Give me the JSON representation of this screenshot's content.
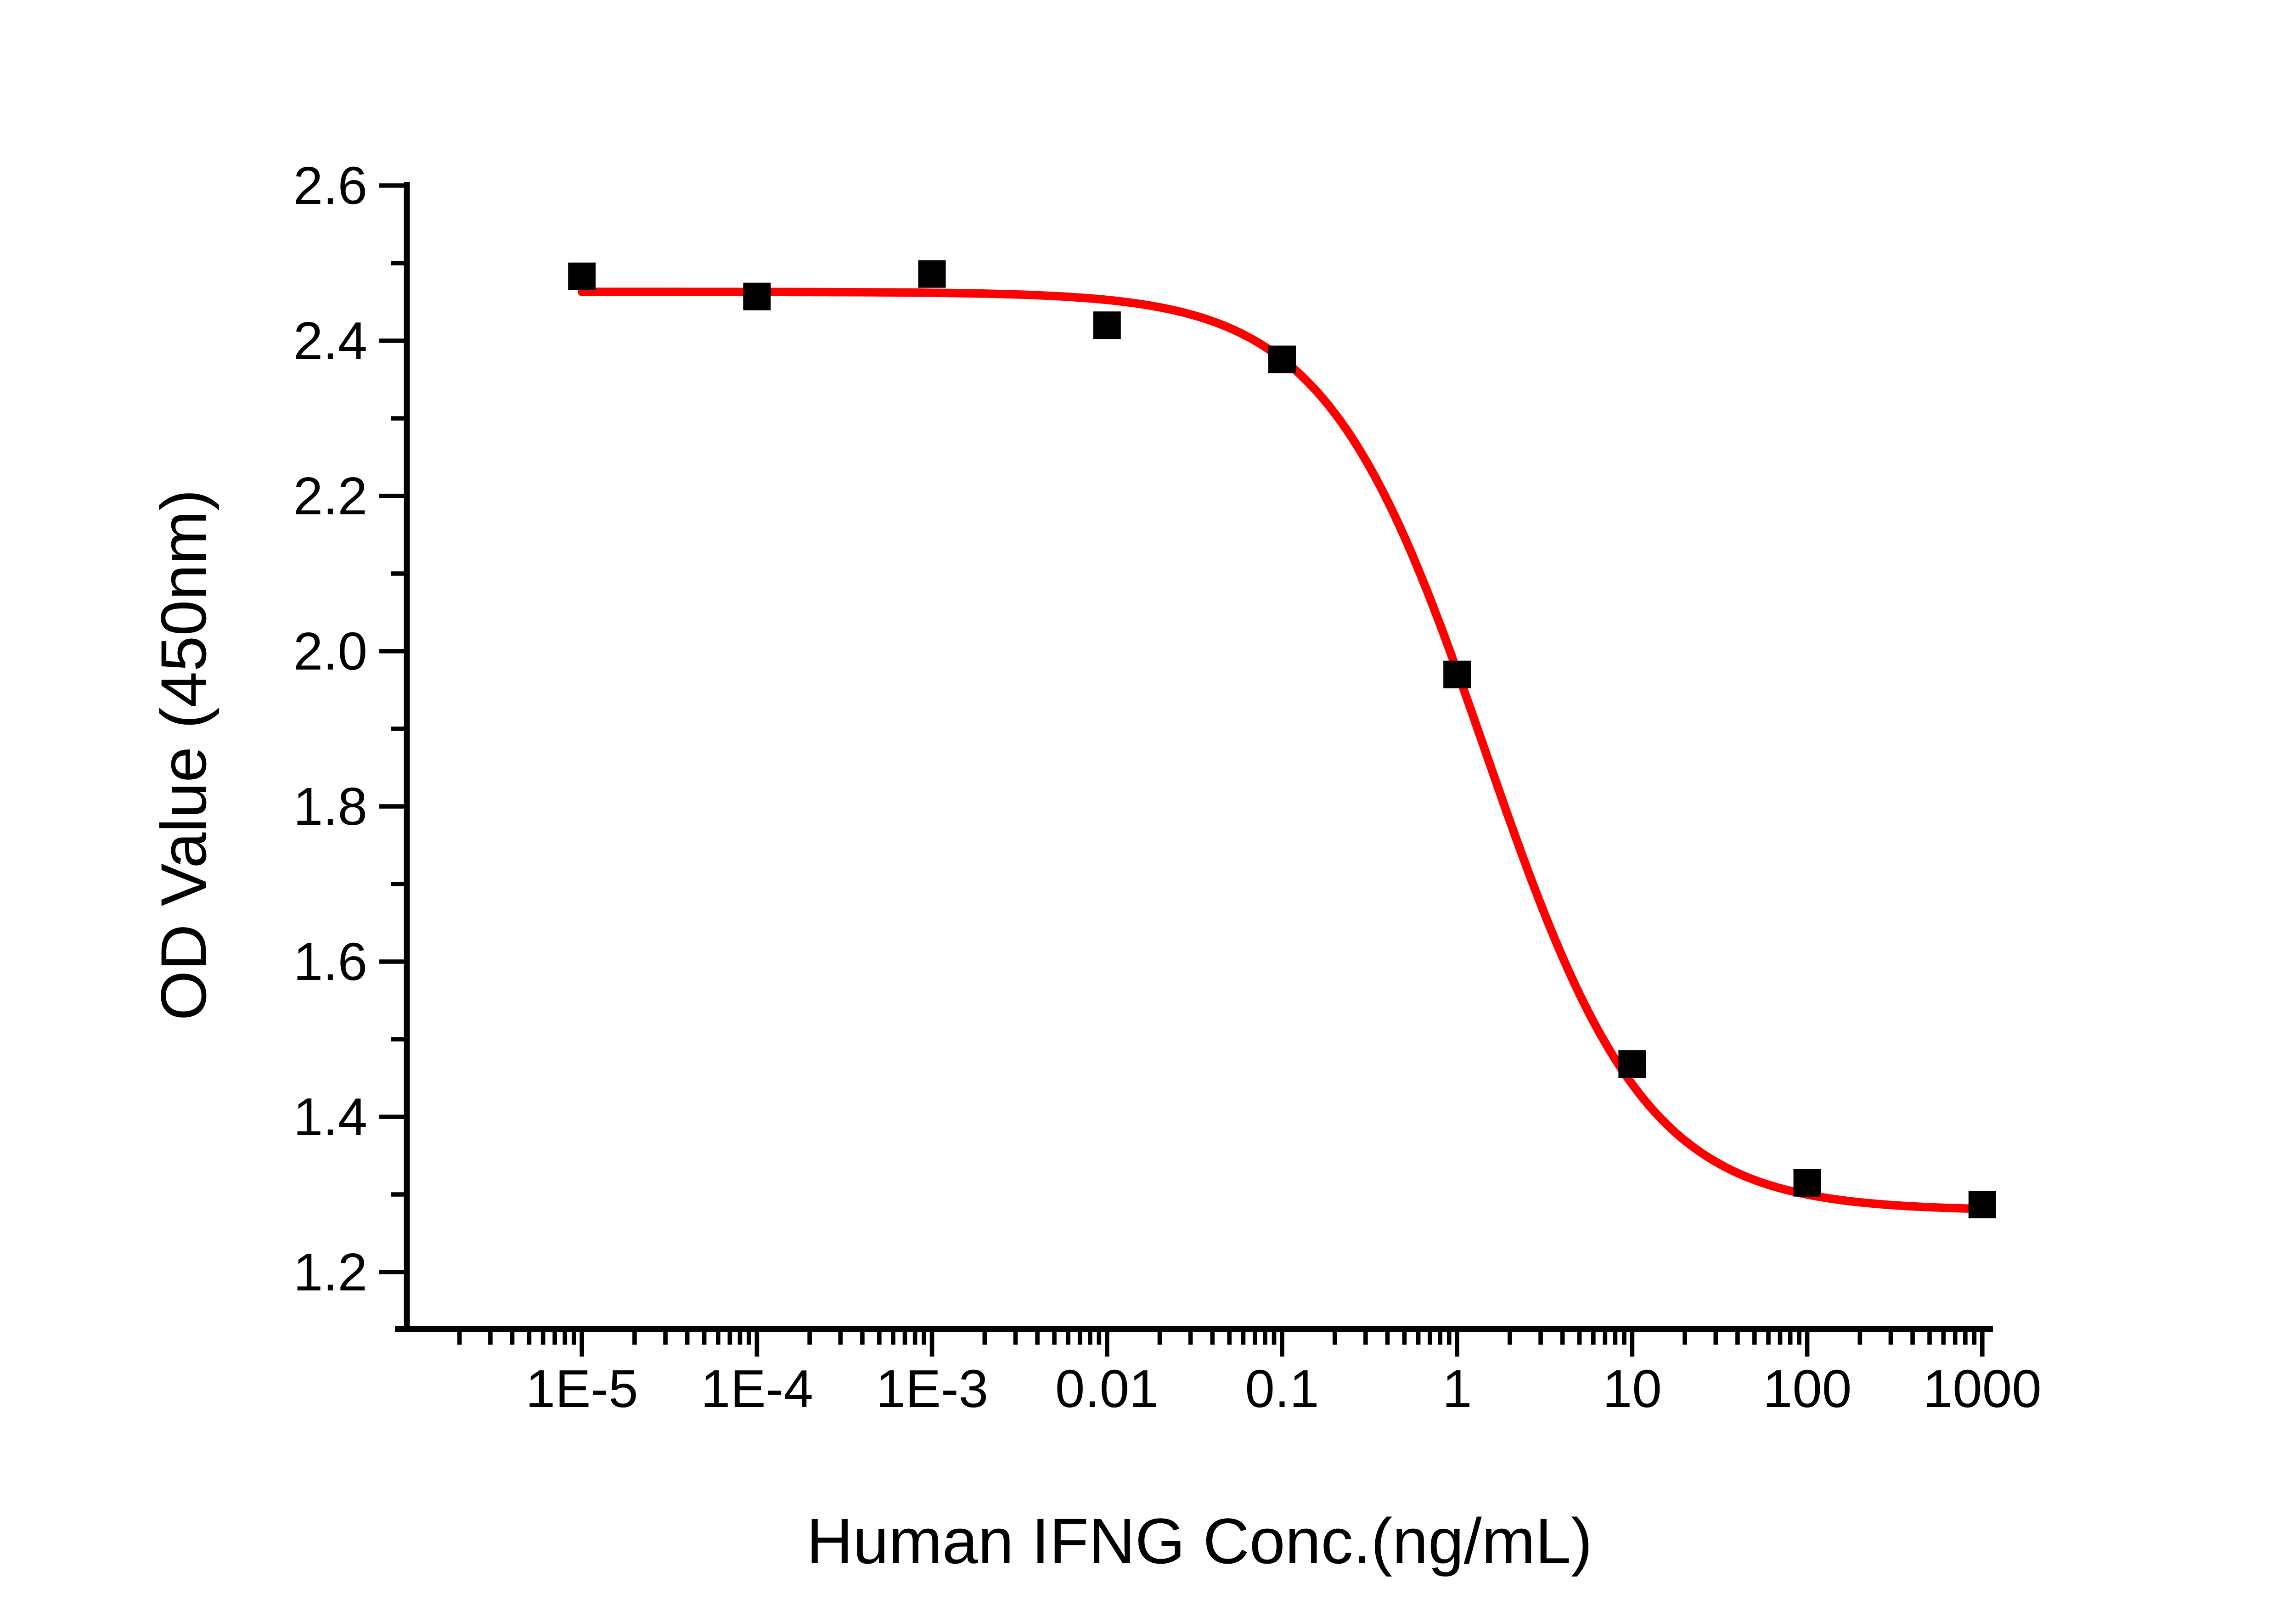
{
  "chart_data": {
    "type": "scatter",
    "title": "",
    "xlabel": "Human IFNG Conc.(ng/mL)",
    "ylabel": "OD Value (450nm)",
    "x_axis": {
      "label": "Human IFNG Conc.(ng/mL)",
      "scale": "log",
      "min": 1e-06,
      "max": 1000,
      "major_ticks": [
        {
          "value": 1e-05,
          "label": "1E-5"
        },
        {
          "value": 0.0001,
          "label": "1E-4"
        },
        {
          "value": 0.001,
          "label": "1E-3"
        },
        {
          "value": 0.01,
          "label": "0.01"
        },
        {
          "value": 0.1,
          "label": "0.1"
        },
        {
          "value": 1,
          "label": "1"
        },
        {
          "value": 10,
          "label": "10"
        },
        {
          "value": 100,
          "label": "100"
        },
        {
          "value": 1000,
          "label": "1000"
        }
      ],
      "minor_ticks": "log-subdecades-2-to-9"
    },
    "y_axis": {
      "label": "OD Value (450nm)",
      "min": 1.1,
      "max": 2.6,
      "major_tick_step": 0.2,
      "minor_tick_step": 0.1,
      "major_ticks": [
        {
          "value": 1.2,
          "label": "1.2"
        },
        {
          "value": 1.4,
          "label": "1.4"
        },
        {
          "value": 1.6,
          "label": "1.6"
        },
        {
          "value": 1.8,
          "label": "1.8"
        },
        {
          "value": 2.0,
          "label": "2.0"
        },
        {
          "value": 2.2,
          "label": "2.2"
        },
        {
          "value": 2.4,
          "label": "2.4"
        },
        {
          "value": 2.6,
          "label": "2.6"
        }
      ]
    },
    "series": [
      {
        "name": "OD Value (450nm)",
        "marker": "square",
        "points": [
          {
            "x_label": "1E-5",
            "x": 1e-05,
            "y": 2.483
          },
          {
            "x_label": "1E-4",
            "x": 0.0001,
            "y": 2.457
          },
          {
            "x_label": "1E-3",
            "x": 0.001,
            "y": 2.486
          },
          {
            "x_label": "0.01",
            "x": 0.01,
            "y": 2.42
          },
          {
            "x_label": "0.1",
            "x": 0.1,
            "y": 2.376
          },
          {
            "x_label": "1",
            "x": 1,
            "y": 1.97
          },
          {
            "x_label": "10",
            "x": 10,
            "y": 1.468
          },
          {
            "x_label": "100",
            "x": 100,
            "y": 1.315
          },
          {
            "x_label": "1000",
            "x": 1000,
            "y": 1.287
          }
        ]
      }
    ],
    "fit_curve": {
      "model": "4PL",
      "top": 2.463,
      "bottom": 1.279,
      "ic50": 1.45,
      "hill": 0.95,
      "x_start": 1e-05,
      "x_end": 1000
    },
    "legend": "none",
    "grid": false,
    "colors": {
      "curve": "#FF0000",
      "marker": "#000000",
      "axis": "#000000",
      "background": "#FFFFFF"
    }
  }
}
